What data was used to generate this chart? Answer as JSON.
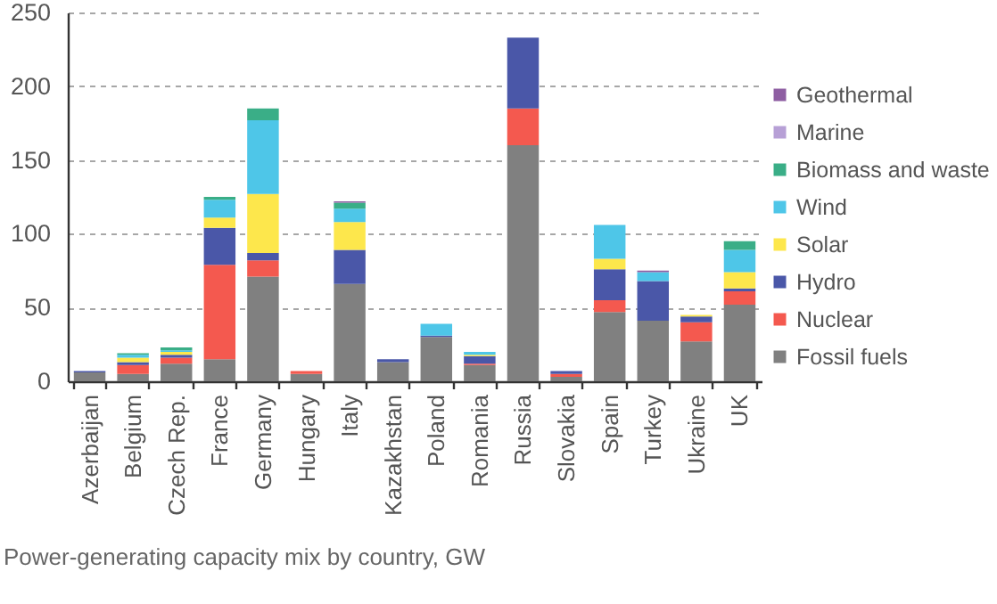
{
  "chart_data": {
    "type": "bar",
    "stacked": true,
    "categories": [
      "Azerbaijan",
      "Belgium",
      "Czech Rep.",
      "France",
      "Germany",
      "Hungary",
      "Italy",
      "Kazakhstan",
      "Poland",
      "Romania",
      "Russia",
      "Slovakia",
      "Spain",
      "Turkey",
      "Ukraine",
      "UK"
    ],
    "series": [
      {
        "name": "Fossil fuels",
        "color": "#808080",
        "values": [
          6,
          5,
          12,
          15,
          71,
          5,
          66,
          13,
          30,
          11,
          160,
          3,
          47,
          41,
          27,
          52
        ]
      },
      {
        "name": "Nuclear",
        "color": "#f4594f",
        "values": [
          null,
          6,
          4,
          64,
          11,
          2,
          null,
          null,
          null,
          1,
          25,
          2,
          8,
          null,
          13,
          9
        ]
      },
      {
        "name": "Hydro",
        "color": "#4a57a8",
        "values": [
          1,
          2,
          2,
          25,
          5,
          null,
          23,
          2,
          1,
          5,
          48,
          2,
          21,
          27,
          4,
          2
        ]
      },
      {
        "name": "Solar",
        "color": "#fde74c",
        "values": [
          null,
          3,
          2,
          7,
          40,
          null,
          19,
          null,
          null,
          1,
          null,
          null,
          7,
          null,
          1,
          11
        ]
      },
      {
        "name": "Wind",
        "color": "#4ec6e8",
        "values": [
          null,
          2,
          1,
          12,
          50,
          null,
          9,
          null,
          8,
          2,
          null,
          null,
          23,
          6,
          null,
          15
        ]
      },
      {
        "name": "Biomass and waste",
        "color": "#3aae87",
        "values": [
          null,
          1,
          2,
          2,
          8,
          null,
          4,
          null,
          null,
          null,
          null,
          null,
          null,
          null,
          null,
          6
        ]
      },
      {
        "name": "Marine",
        "color": "#b7a0d6",
        "values": [
          null,
          null,
          null,
          null,
          null,
          null,
          null,
          null,
          null,
          null,
          null,
          null,
          null,
          null,
          null,
          null
        ]
      },
      {
        "name": "Geothermal",
        "color": "#8e5ea2",
        "values": [
          null,
          null,
          null,
          null,
          null,
          null,
          1,
          null,
          null,
          null,
          null,
          null,
          null,
          1,
          null,
          null
        ]
      }
    ],
    "ylim": [
      0,
      250
    ],
    "yticks": [
      0,
      50,
      100,
      150,
      200,
      250
    ],
    "grid": "y",
    "legend": "right",
    "annotations": [
      "Power-generating capacity mix by country, GW"
    ]
  }
}
